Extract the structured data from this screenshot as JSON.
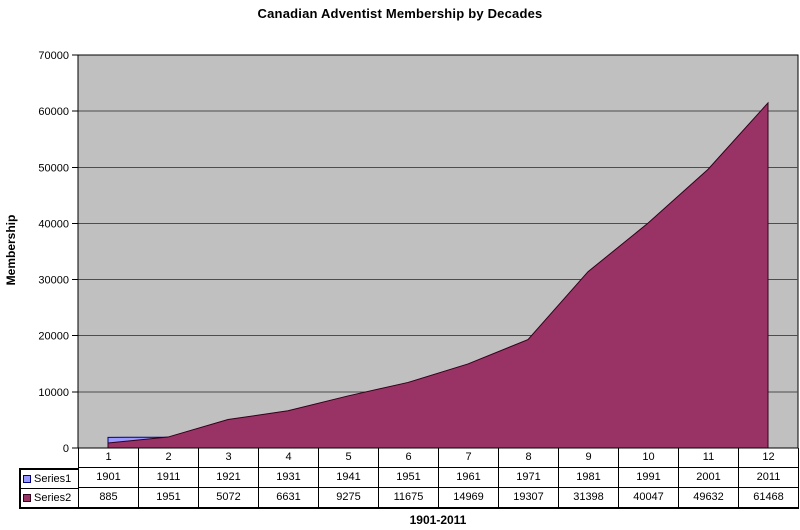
{
  "chart": {
    "title": "Canadian Adventist Membership by Decades",
    "y_axis": {
      "title": "Membership",
      "ticks": [
        0,
        10000,
        20000,
        30000,
        40000,
        50000,
        60000,
        70000
      ]
    },
    "x_axis": {
      "title": "1901-2011"
    },
    "colors": {
      "plot_bg": "#c0c0c0",
      "gridline": "#4d4d4d",
      "axis": "#000000",
      "series1_fill": "#9999ff",
      "series1_border": "#000080",
      "series2_fill": "#993366",
      "series2_border": "#33001a"
    }
  },
  "chart_data": {
    "type": "area",
    "title": "Canadian Adventist Membership by Decades",
    "xlabel": "1901-2011",
    "ylabel": "Membership",
    "ylim": [
      0,
      70000
    ],
    "grid": "horizontal-major",
    "legend_position": "data-table-left",
    "categories": [
      "1",
      "2",
      "3",
      "4",
      "5",
      "6",
      "7",
      "8",
      "9",
      "10",
      "11",
      "12"
    ],
    "series": [
      {
        "name": "Series1",
        "values": [
          1901,
          1911,
          1921,
          1931,
          1941,
          1951,
          1961,
          1971,
          1981,
          1991,
          2001,
          2011
        ]
      },
      {
        "name": "Series2",
        "values": [
          885,
          1951,
          5072,
          6631,
          9275,
          11675,
          14969,
          19307,
          31398,
          40047,
          49632,
          61468
        ]
      }
    ]
  }
}
